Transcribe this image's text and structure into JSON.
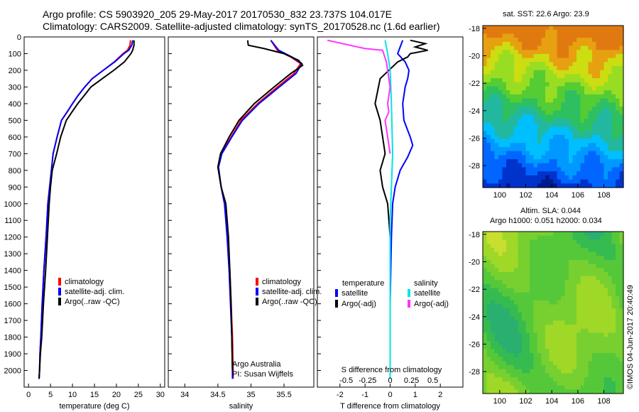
{
  "title_line1": "Argo profile: CS 5903920_205 29-May-2017 20170530_832 23.737S 104.017E",
  "title_line2": "Climatology: CARS2009. Satellite-adjusted climatology: synTS_20170528.nc (1.6d earlier)",
  "sst_title": "sat. SST: 22.6 Argo: 23.9",
  "sla_title1": "Altim. SLA: 0.044",
  "sla_title2": "Argo h1000: 0.051 h2000: 0.034",
  "credit": "©IMOS 04-Jun-2017 20:40:49",
  "inst_line1": "Argo Australia",
  "inst_line2": "PI: Susan Wijffels",
  "colors": {
    "climatology": "#ff0000",
    "satellite": "#0000ff",
    "argo": "#000000",
    "sal_sat": "#00e5e5",
    "sal_argo": "#ff33ff"
  },
  "chart_data": [
    {
      "type": "line",
      "panel": "temperature",
      "xlabel": "temperature (deg C)",
      "ylabel": "",
      "xlim": [
        -1,
        31
      ],
      "ylim": [
        2100,
        0
      ],
      "xticks": [
        0,
        5,
        10,
        15,
        20,
        25,
        30
      ],
      "yticks": [
        0,
        100,
        200,
        300,
        400,
        500,
        600,
        700,
        800,
        900,
        1000,
        1100,
        1200,
        1300,
        1400,
        1500,
        1600,
        1700,
        1800,
        1900,
        2000
      ],
      "legend": [
        "climatology",
        "satellite-adj. clim.",
        "Argo(..raw -QC)"
      ],
      "series": [
        {
          "name": "climatology",
          "x": [
            23.2,
            23.1,
            22.5,
            21.5,
            19.5,
            17.0,
            14.5,
            12.8,
            11.3,
            10.0,
            8.8,
            7.5,
            6.5,
            5.6,
            5.2,
            4.8,
            4.4,
            4.0,
            3.5,
            3.1,
            2.8,
            2.6,
            2.5,
            2.4
          ],
          "y": [
            20,
            50,
            80,
            100,
            150,
            200,
            250,
            300,
            350,
            400,
            450,
            500,
            600,
            700,
            800,
            900,
            1000,
            1200,
            1400,
            1600,
            1800,
            1900,
            2000,
            2050
          ]
        },
        {
          "name": "satellite-adj. clim.",
          "x": [
            23.7,
            23.5,
            22.8,
            21.7,
            19.6,
            17.0,
            14.5,
            12.8,
            11.3,
            10.0,
            8.8,
            7.5,
            6.5,
            5.6,
            5.2,
            4.8,
            4.4,
            4.0,
            3.5,
            3.1,
            2.8,
            2.6,
            2.5,
            2.4
          ],
          "y": [
            20,
            50,
            80,
            100,
            150,
            200,
            250,
            300,
            350,
            400,
            450,
            500,
            600,
            700,
            800,
            900,
            1000,
            1200,
            1400,
            1600,
            1800,
            1900,
            2000,
            2050
          ]
        },
        {
          "name": "Argo(..raw -QC)",
          "x": [
            24.0,
            24.0,
            23.7,
            23.3,
            21.8,
            19.4,
            16.8,
            14.2,
            12.7,
            11.2,
            9.9,
            8.6,
            7.3,
            6.4,
            5.4,
            5.0,
            4.7,
            4.3,
            3.9,
            3.4,
            3.0,
            2.7,
            2.5,
            2.4
          ],
          "y": [
            20,
            50,
            80,
            100,
            150,
            200,
            250,
            300,
            350,
            400,
            450,
            500,
            600,
            700,
            800,
            900,
            1000,
            1200,
            1400,
            1600,
            1800,
            1900,
            2000,
            2050
          ]
        }
      ]
    },
    {
      "type": "line",
      "panel": "salinity",
      "xlabel": "salinity",
      "ylabel": "",
      "xlim": [
        33.75,
        35.95
      ],
      "ylim": [
        2100,
        0
      ],
      "xticks": [
        34,
        34.5,
        35,
        35.5
      ],
      "legend": [
        "climatology",
        "satellite-adj. clim.",
        "Argo(..raw -QC)"
      ],
      "series": [
        {
          "name": "climatology",
          "x": [
            35.3,
            35.4,
            35.6,
            35.75,
            35.65,
            35.4,
            35.1,
            34.85,
            34.7,
            34.55,
            34.5,
            34.55,
            34.6,
            34.65,
            34.68,
            34.7,
            34.72,
            34.73,
            34.73
          ],
          "y": [
            20,
            80,
            120,
            160,
            220,
            300,
            400,
            500,
            600,
            700,
            780,
            900,
            1000,
            1200,
            1400,
            1600,
            1800,
            2000,
            2050
          ]
        },
        {
          "name": "satellite-adj. clim.",
          "x": [
            35.3,
            35.42,
            35.62,
            35.77,
            35.68,
            35.43,
            35.12,
            34.87,
            34.71,
            34.56,
            34.51,
            34.55,
            34.6,
            34.64,
            34.67,
            34.69,
            34.71,
            34.72,
            34.72
          ],
          "y": [
            20,
            80,
            120,
            160,
            220,
            300,
            400,
            500,
            600,
            700,
            780,
            900,
            1000,
            1200,
            1400,
            1600,
            1800,
            2000,
            2050
          ]
        },
        {
          "name": "Argo(..raw -QC)",
          "x": [
            34.95,
            34.96,
            35.2,
            35.5,
            35.72,
            35.78,
            35.6,
            35.35,
            35.05,
            34.82,
            34.67,
            34.54,
            34.5,
            34.55,
            34.62,
            34.66,
            34.68,
            34.7,
            34.71,
            34.72
          ],
          "y": [
            20,
            50,
            70,
            100,
            140,
            170,
            220,
            300,
            400,
            500,
            600,
            700,
            780,
            900,
            1000,
            1200,
            1400,
            1600,
            1800,
            2000
          ]
        }
      ]
    },
    {
      "type": "line",
      "panel": "differences",
      "xlabel": "T difference from climatology",
      "x2label": "S difference from climatology",
      "xlim": [
        -2.9,
        2.9
      ],
      "ylim": [
        2100,
        0
      ],
      "xticks": [
        -2,
        -1,
        0,
        1,
        2
      ],
      "x2ticks": [
        "-0.5",
        "-0.25",
        "0",
        "0.25",
        "0.5"
      ],
      "legend_headers": [
        "temperature",
        "salinity"
      ],
      "legend": [
        "satellite",
        "Argo(-adj)",
        "satellite",
        "Argo(-adj)"
      ],
      "series": [
        {
          "name": "temperature satellite",
          "x": [
            0.5,
            0.4,
            0.3,
            0.6,
            0.75,
            0.7,
            0.6,
            0.5,
            0.55,
            0.8,
            0.9,
            0.7,
            0.4,
            0.2,
            0.1,
            0.05,
            0.0,
            0.0
          ],
          "y": [
            20,
            60,
            100,
            150,
            200,
            250,
            300,
            400,
            500,
            600,
            650,
            720,
            800,
            900,
            1000,
            1200,
            1600,
            2050
          ]
        },
        {
          "name": "temperature Argo(-adj)",
          "x": [
            0.8,
            1.4,
            1.0,
            1.5,
            0.8,
            0.7,
            0.3,
            -0.4,
            -0.6,
            -0.4,
            -0.3,
            -0.2,
            -0.4,
            -0.3,
            -0.1,
            0.0,
            0.0
          ],
          "y": [
            20,
            40,
            60,
            80,
            100,
            120,
            150,
            250,
            400,
            500,
            600,
            700,
            800,
            900,
            1000,
            1200,
            2000
          ]
        },
        {
          "name": "salinity satellite",
          "x": [
            -0.2,
            -0.1,
            0.0,
            0.05,
            0.1,
            0.05,
            0.0,
            0.0,
            0.0
          ],
          "y": [
            20,
            100,
            200,
            400,
            700,
            900,
            1100,
            1500,
            2050
          ]
        },
        {
          "name": "salinity Argo(-adj)",
          "x": [
            -2.5,
            -1.6,
            -1.0,
            -0.3,
            -0.15,
            -0.05,
            0.0,
            -0.1,
            -0.05,
            -0.2,
            -0.1,
            0.0
          ],
          "y": [
            20,
            50,
            70,
            80,
            150,
            250,
            300,
            400,
            450,
            500,
            600,
            700
          ]
        }
      ]
    },
    {
      "type": "heatmap",
      "panel": "sst",
      "title": "sat. SST: 22.6 Argo: 23.9",
      "xlim": [
        98.7,
        109.5
      ],
      "ylim": [
        -29.6,
        -17.8
      ],
      "xticks": [
        100,
        102,
        104,
        106,
        108
      ],
      "yticks": [
        -18,
        -20,
        -22,
        -24,
        -26,
        -28
      ]
    },
    {
      "type": "heatmap",
      "panel": "sla",
      "title": "Altim. SLA: 0.044",
      "subtitle": "Argo h1000: 0.051 h2000: 0.034",
      "xlim": [
        98.7,
        109.5
      ],
      "ylim": [
        -29.6,
        -17.8
      ],
      "xticks": [
        100,
        102,
        104,
        106,
        108
      ],
      "yticks": [
        -18,
        -20,
        -22,
        -24,
        -26,
        -28
      ]
    }
  ]
}
